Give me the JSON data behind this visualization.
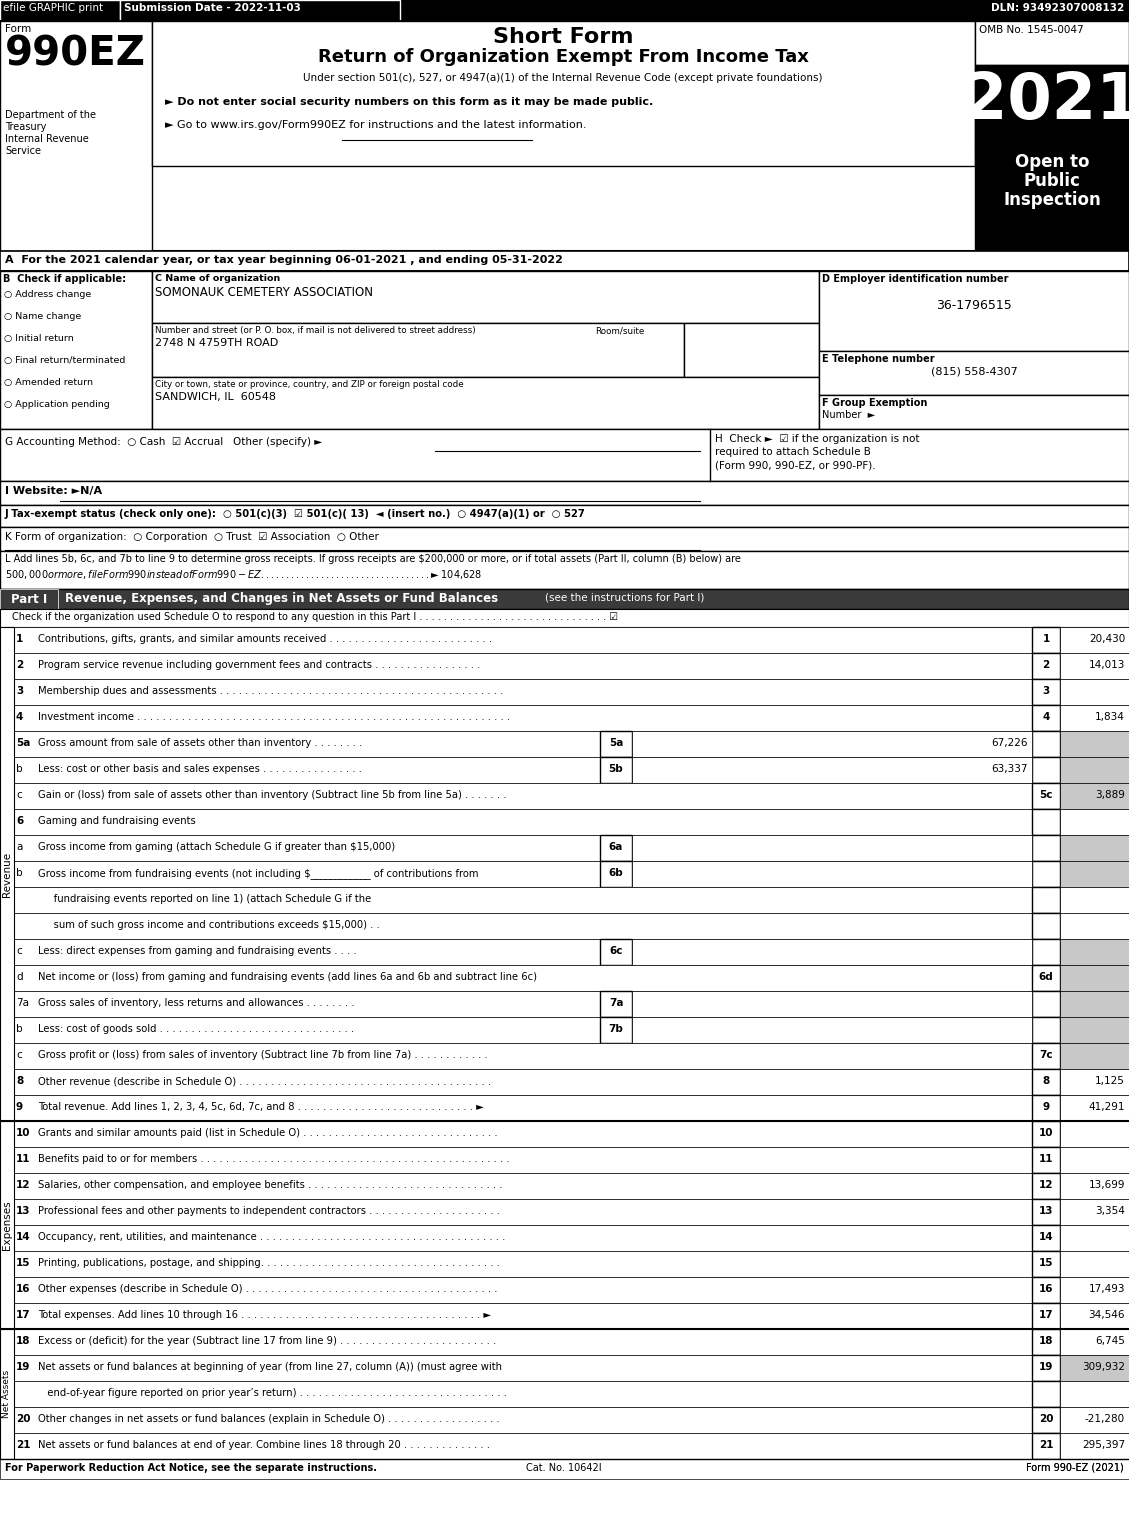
{
  "efile_text": "efile GRAPHIC print",
  "submission_date": "Submission Date - 2022-11-03",
  "dln": "DLN: 93492307008132",
  "omb": "OMB No. 1545-0047",
  "title_short": "Short Form",
  "title_main": "Return of Organization Exempt From Income Tax",
  "title_sub": "Under section 501(c), 527, or 4947(a)(1) of the Internal Revenue Code (except private foundations)",
  "dept": [
    "Department of the",
    "Treasury",
    "Internal Revenue",
    "Service"
  ],
  "bullet1": "► Do not enter social security numbers on this form as it may be made public.",
  "bullet2": "► Go to www.irs.gov/Form990EZ for instructions and the latest information.",
  "year": "2021",
  "open_to": "Open to",
  "public": "Public",
  "inspection": "Inspection",
  "line_A": "A  For the 2021 calendar year, or tax year beginning 06-01-2021 , and ending 05-31-2022",
  "checkboxes_B": [
    "○ Address change",
    "○ Name change",
    "○ Initial return",
    "○ Final return/terminated",
    "○ Amended return",
    "○ Application pending"
  ],
  "label_C": "C Name of organization",
  "org_name": "SOMONAUK CEMETERY ASSOCIATION",
  "street_label": "Number and street (or P. O. box, if mail is not delivered to street address)",
  "room_suite": "Room/suite",
  "street": "2748 N 4759TH ROAD",
  "city_label": "City or town, state or province, country, and ZIP or foreign postal code",
  "city": "SANDWICH, IL  60548",
  "label_D": "D Employer identification number",
  "ein": "36-1796515",
  "label_E": "E Telephone number",
  "phone": "(815) 558-4307",
  "label_F": "F Group Exemption",
  "label_F2": "Number  ►",
  "label_G": "G Accounting Method:  ○ Cash  ☑ Accrual   Other (specify) ►",
  "label_H1": "H  Check ►  ☑ if the organization is not",
  "label_H2": "required to attach Schedule B",
  "label_H3": "(Form 990, 990-EZ, or 990-PF).",
  "label_I": "I Website: ►N/A",
  "label_J": "J Tax-exempt status (check only one):  ○ 501(c)(3)  ☑ 501(c)( 13)  ◄ (insert no.)  ○ 4947(a)(1) or  ○ 527",
  "label_K": "K Form of organization:  ○ Corporation  ○ Trust  ☑ Association  ○ Other",
  "line_L1": "L Add lines 5b, 6c, and 7b to line 9 to determine gross receipts. If gross receipts are $200,000 or more, or if total assets (Part II, column (B) below) are",
  "line_L2": "$500,000 or more, file Form 990 instead of Form 990-EZ . . . . . . . . . . . . . . . . . . . . . . . . . . . . . . . . . . ► $ 104,628",
  "part1_title": "Revenue, Expenses, and Changes in Net Assets or Fund Balances",
  "part1_sub": "(see the instructions for Part I)",
  "part1_check": "Check if the organization used Schedule O to respond to any question in this Part I",
  "footer_left": "For Paperwork Reduction Act Notice, see the separate instructions.",
  "footer_cat": "Cat. No. 10642I",
  "footer_right": "Form 990-EZ (2021)"
}
